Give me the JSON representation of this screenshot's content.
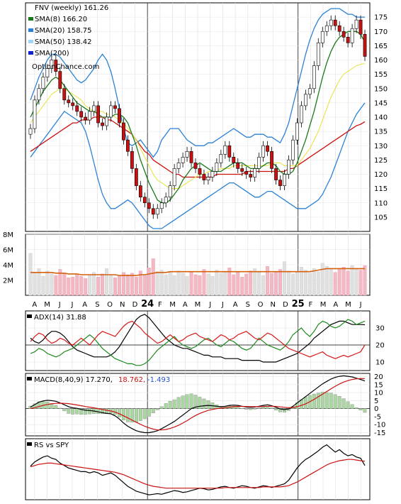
{
  "chart_data": [
    {
      "type": "candlestick",
      "panel": "price",
      "legend": [
        {
          "label": "FNV (weekly) 161.26",
          "color": "#000000",
          "marker": "none"
        },
        {
          "label": "SMA(8) 166.20",
          "color": "#1a7a1a",
          "marker": "bar"
        },
        {
          "label": "SMA(20) 158.75",
          "color": "#2a82d6",
          "marker": "bar"
        },
        {
          "label": "SMA(50) 138.42",
          "color": "#9fd4f6",
          "marker": "bar"
        },
        {
          "label": "SMA(200)",
          "color": "#1020d0",
          "marker": "bar"
        }
      ],
      "watermark": "OptionChance.com",
      "ylim": [
        100,
        180
      ],
      "yticks": [
        105,
        110,
        115,
        120,
        125,
        130,
        135,
        140,
        145,
        150,
        155,
        160,
        165,
        170,
        175
      ],
      "x_month_labels": [
        "A",
        "M",
        "J",
        "J",
        "A",
        "S",
        "O",
        "N",
        "D",
        "24",
        "F",
        "M",
        "A",
        "M",
        "J",
        "J",
        "A",
        "S",
        "O",
        "N",
        "D",
        "25",
        "F",
        "M",
        "A",
        "M",
        "J"
      ],
      "close": [
        136,
        146,
        150,
        154,
        157,
        160,
        156,
        150,
        146,
        145,
        144,
        142,
        140,
        139,
        142,
        144,
        138,
        137,
        140,
        144,
        143,
        138,
        132,
        128,
        122,
        116,
        112,
        110,
        108,
        106,
        108,
        110,
        112,
        116,
        122,
        124,
        126,
        128,
        124,
        122,
        120,
        118,
        119,
        121,
        124,
        127,
        130,
        126,
        124,
        122,
        121,
        120,
        119,
        122,
        126,
        130,
        128,
        122,
        118,
        116,
        120,
        125,
        132,
        138,
        144,
        148,
        150,
        158,
        166,
        170,
        172,
        174,
        172,
        170,
        168,
        166,
        171,
        174,
        169,
        161.26
      ],
      "sma8": [
        140,
        143,
        146,
        149,
        151,
        153,
        154,
        153,
        151,
        149,
        147,
        145,
        144,
        143,
        142,
        142,
        141,
        140,
        140,
        140,
        141,
        141,
        140,
        138,
        134,
        130,
        125,
        121,
        117,
        114,
        111,
        110,
        110,
        111,
        113,
        115,
        118,
        120,
        122,
        123,
        124,
        123,
        122,
        121,
        121,
        121,
        122,
        123,
        124,
        124,
        124,
        123,
        122,
        122,
        122,
        123,
        124,
        124,
        123,
        121,
        120,
        120,
        121,
        124,
        128,
        132,
        137,
        142,
        148,
        154,
        159,
        163,
        166,
        168,
        169,
        170,
        170,
        170,
        169,
        166.2
      ],
      "sma20": [
        138,
        140,
        142,
        144,
        146,
        148,
        149,
        150,
        150,
        149,
        148,
        147,
        146,
        144,
        143,
        142,
        142,
        142,
        141,
        141,
        140,
        139,
        138,
        136,
        134,
        132,
        129,
        126,
        123,
        120,
        118,
        117,
        116,
        115,
        115,
        115,
        116,
        117,
        118,
        119,
        120,
        120,
        121,
        121,
        121,
        122,
        122,
        122,
        123,
        123,
        123,
        123,
        123,
        123,
        123,
        123,
        123,
        124,
        124,
        124,
        123,
        123,
        123,
        123,
        125,
        127,
        129,
        132,
        135,
        139,
        143,
        147,
        150,
        153,
        155,
        156,
        157,
        158,
        158.5,
        158.75
      ],
      "sma50": [
        128,
        129,
        130,
        131,
        132,
        133,
        134,
        135,
        136,
        137,
        138,
        138,
        139,
        139,
        139,
        140,
        140,
        140,
        139,
        139,
        138,
        137,
        136,
        135,
        134,
        132,
        130,
        128,
        127,
        125,
        124,
        123,
        122,
        121,
        120,
        120,
        119,
        119,
        119,
        119,
        119,
        119,
        119,
        119,
        120,
        120,
        120,
        120,
        120,
        120,
        120,
        121,
        121,
        121,
        121,
        121,
        121,
        121,
        121,
        121,
        121,
        122,
        122,
        123,
        124,
        125,
        126,
        127,
        128,
        129,
        130,
        131,
        132,
        133,
        134,
        135,
        136,
        137,
        137.5,
        138.42
      ],
      "bb_upper": [
        146,
        150,
        154,
        157,
        160,
        162,
        162,
        161,
        159,
        157,
        155,
        153,
        152,
        153,
        155,
        157,
        160,
        162,
        160,
        156,
        150,
        143,
        136,
        131,
        130,
        131,
        132,
        130,
        128,
        126,
        128,
        132,
        134,
        136,
        136,
        136,
        134,
        132,
        131,
        130,
        130,
        130,
        131,
        131,
        132,
        133,
        134,
        135,
        136,
        135,
        134,
        133,
        133,
        134,
        134,
        134,
        133,
        133,
        132,
        131,
        134,
        138,
        144,
        150,
        156,
        162,
        167,
        171,
        174,
        176,
        177,
        178,
        178,
        178,
        177,
        176,
        176,
        175,
        175,
        175
      ],
      "bb_lower": [
        126,
        128,
        130,
        132,
        134,
        136,
        138,
        140,
        142,
        141,
        140,
        139,
        138,
        135,
        130,
        124,
        118,
        113,
        110,
        108,
        108,
        109,
        110,
        111,
        110,
        108,
        106,
        104,
        102,
        101,
        101,
        101,
        102,
        103,
        104,
        105,
        106,
        107,
        108,
        109,
        110,
        111,
        112,
        113,
        114,
        115,
        116,
        117,
        117,
        116,
        115,
        114,
        113,
        112,
        112,
        113,
        114,
        114,
        113,
        112,
        111,
        110,
        109,
        108,
        108,
        108,
        109,
        110,
        111,
        113,
        116,
        119,
        123,
        127,
        131,
        135,
        138,
        141,
        143,
        145
      ]
    },
    {
      "type": "bar",
      "panel": "volume",
      "yticks": [
        "8M",
        "6M",
        "4M",
        "2M"
      ],
      "ylim": [
        0,
        8
      ],
      "values": [
        5.5,
        3.0,
        3.5,
        2.5,
        3.2,
        2.8,
        2.6,
        3.4,
        2.9,
        2.3,
        2.4,
        2.7,
        2.5,
        2.2,
        2.6,
        3.0,
        2.4,
        2.8,
        3.5,
        2.6,
        2.3,
        2.5,
        3.0,
        2.7,
        2.9,
        2.4,
        3.2,
        2.6,
        3.6,
        4.8,
        3.1,
        3.3,
        2.7,
        3.0,
        2.6,
        3.2,
        2.9,
        2.5,
        3.0,
        2.7,
        2.6,
        3.4,
        2.8,
        2.5,
        3.3,
        2.9,
        3.1,
        3.6,
        2.7,
        3.0,
        2.4,
        2.8,
        3.2,
        3.5,
        3.0,
        2.6,
        3.8,
        2.9,
        3.1,
        3.4,
        4.4,
        3.2,
        2.8,
        3.0,
        3.7,
        3.3,
        2.9,
        3.5,
        3.1,
        4.2,
        3.8,
        3.5,
        3.0,
        3.4,
        3.7,
        3.2,
        3.9,
        3.5,
        3.3,
        3.9
      ],
      "average": [
        3.0,
        3.0,
        3.0,
        3.0,
        3.0,
        3.0,
        2.9,
        2.9,
        2.9,
        2.8,
        2.8,
        2.8,
        2.7,
        2.7,
        2.7,
        2.7,
        2.7,
        2.7,
        2.7,
        2.7,
        2.7,
        2.6,
        2.6,
        2.6,
        2.6,
        2.6,
        2.7,
        2.7,
        2.8,
        2.9,
        3.0,
        3.0,
        3.0,
        3.1,
        3.1,
        3.1,
        3.1,
        3.1,
        3.1,
        3.1,
        3.1,
        3.1,
        3.1,
        3.1,
        3.1,
        3.1,
        3.1,
        3.1,
        3.1,
        3.1,
        3.1,
        3.1,
        3.1,
        3.1,
        3.1,
        3.1,
        3.1,
        3.1,
        3.1,
        3.1,
        3.1,
        3.1,
        3.1,
        3.1,
        3.1,
        3.1,
        3.1,
        3.2,
        3.3,
        3.4,
        3.5,
        3.5,
        3.5,
        3.5,
        3.5,
        3.5,
        3.5,
        3.5,
        3.5,
        3.5
      ]
    },
    {
      "type": "line",
      "panel": "adx",
      "label": "ADX(14) 31.88",
      "ylim": [
        5,
        40
      ],
      "yticks": [
        10,
        20,
        30
      ],
      "series": [
        {
          "color": "#000000",
          "values": [
            24,
            22,
            21,
            23,
            26,
            28,
            28,
            27,
            25,
            22,
            19,
            17,
            16,
            15,
            14,
            13,
            13,
            13,
            13,
            14,
            16,
            19,
            23,
            27,
            31,
            35,
            37,
            38,
            36,
            33,
            30,
            27,
            24,
            22,
            20,
            19,
            18,
            18,
            17,
            16,
            15,
            14,
            14,
            13,
            13,
            13,
            12,
            12,
            12,
            12,
            11,
            11,
            11,
            11,
            11,
            10,
            10,
            10,
            10,
            11,
            12,
            13,
            14,
            15,
            17,
            19,
            21,
            24,
            26,
            28,
            30,
            32,
            33,
            34,
            34,
            33,
            32,
            32,
            32,
            31.88
          ]
        },
        {
          "color": "#1e8a1e",
          "values": [
            15,
            16,
            18,
            17,
            15,
            14,
            13,
            14,
            16,
            17,
            18,
            20,
            22,
            24,
            26,
            24,
            21,
            18,
            16,
            14,
            12,
            11,
            10,
            9,
            9,
            8,
            8,
            9,
            11,
            14,
            17,
            19,
            21,
            23,
            25,
            22,
            20,
            19,
            18,
            19,
            21,
            23,
            24,
            22,
            20,
            19,
            21,
            23,
            22,
            20,
            18,
            17,
            18,
            21,
            24,
            22,
            20,
            19,
            18,
            17,
            19,
            22,
            26,
            28,
            30,
            27,
            25,
            28,
            32,
            34,
            33,
            31,
            30,
            31,
            33,
            35,
            34,
            32,
            33,
            34
          ]
        },
        {
          "color": "#d81818",
          "values": [
            22,
            25,
            27,
            26,
            23,
            21,
            22,
            24,
            23,
            21,
            20,
            22,
            24,
            22,
            20,
            23,
            26,
            28,
            27,
            26,
            25,
            28,
            31,
            33,
            34,
            32,
            30,
            27,
            25,
            23,
            21,
            22,
            24,
            26,
            24,
            22,
            23,
            25,
            26,
            27,
            25,
            24,
            23,
            22,
            24,
            26,
            25,
            23,
            24,
            26,
            27,
            28,
            26,
            24,
            23,
            25,
            27,
            26,
            24,
            22,
            20,
            18,
            17,
            16,
            15,
            14,
            13,
            14,
            15,
            16,
            14,
            13,
            12,
            13,
            14,
            13,
            14,
            15,
            16,
            20
          ]
        }
      ]
    },
    {
      "type": "line_histogram",
      "panel": "macd",
      "label": "MACD(8,40,9) 17.270,",
      "signal_label": "18.762,",
      "hist_label": "-1.493",
      "ylim": [
        -17,
        22
      ],
      "yticks": [
        20,
        15,
        10,
        5,
        0,
        -5,
        -10,
        -15
      ],
      "macd": [
        1.0,
        2.5,
        4.0,
        4.8,
        5.2,
        5.0,
        4.6,
        3.6,
        2.4,
        1.2,
        0.5,
        0.2,
        -0.5,
        -1.0,
        -1.2,
        -1.5,
        -2.0,
        -2.5,
        -3.0,
        -3.2,
        -4.5,
        -6.5,
        -9.0,
        -11.0,
        -12.5,
        -13.8,
        -14.5,
        -15.0,
        -15.0,
        -14.5,
        -13.8,
        -12.5,
        -11.0,
        -9.5,
        -8.0,
        -6.0,
        -4.0,
        -2.0,
        0.0,
        1.0,
        1.5,
        1.8,
        2.0,
        1.8,
        1.5,
        1.2,
        1.5,
        2.0,
        2.2,
        2.0,
        1.5,
        1.0,
        0.8,
        1.0,
        1.5,
        2.0,
        2.4,
        1.8,
        0.8,
        -0.2,
        -0.6,
        -0.2,
        1.5,
        3.5,
        5.5,
        7.5,
        9.5,
        11.5,
        13.5,
        15.5,
        17.0,
        18.5,
        19.5,
        20.2,
        20.5,
        20.2,
        19.8,
        19.0,
        18.2,
        17.27
      ],
      "signal": [
        0.0,
        0.6,
        1.3,
        2.0,
        2.6,
        3.0,
        3.3,
        3.4,
        3.3,
        3.1,
        2.7,
        2.3,
        1.8,
        1.3,
        0.9,
        0.5,
        0.0,
        -0.5,
        -1.0,
        -1.5,
        -2.2,
        -3.2,
        -4.5,
        -5.8,
        -7.2,
        -8.5,
        -9.8,
        -11.0,
        -12.0,
        -12.8,
        -13.3,
        -13.3,
        -13.0,
        -12.4,
        -11.5,
        -10.4,
        -9.0,
        -7.5,
        -5.8,
        -4.3,
        -3.0,
        -2.0,
        -1.1,
        -0.5,
        0.0,
        0.3,
        0.6,
        0.9,
        1.2,
        1.4,
        1.4,
        1.3,
        1.2,
        1.2,
        1.2,
        1.3,
        1.5,
        1.5,
        1.4,
        1.1,
        0.8,
        0.6,
        0.7,
        1.2,
        2.0,
        3.0,
        4.3,
        5.8,
        7.4,
        9.0,
        10.7,
        12.4,
        14.0,
        15.4,
        16.6,
        17.5,
        18.2,
        18.6,
        18.8,
        18.762
      ]
    },
    {
      "type": "line",
      "panel": "rs",
      "label": "RS vs SPY",
      "ylim": [
        0,
        100
      ],
      "series": [
        {
          "color": "#000000",
          "values": [
            55,
            62,
            66,
            70,
            72,
            68,
            66,
            60,
            56,
            52,
            50,
            48,
            46,
            46,
            44,
            46,
            44,
            40,
            42,
            44,
            40,
            34,
            28,
            22,
            18,
            14,
            12,
            10,
            8,
            9,
            10,
            9,
            11,
            13,
            15,
            14,
            12,
            13,
            15,
            17,
            19,
            18,
            16,
            17,
            19,
            21,
            22,
            20,
            19,
            21,
            23,
            22,
            20,
            19,
            21,
            23,
            22,
            20,
            22,
            24,
            26,
            32,
            42,
            52,
            60,
            66,
            70,
            75,
            80,
            86,
            90,
            84,
            78,
            82,
            76,
            72,
            74,
            70,
            68,
            56
          ]
        },
        {
          "color": "#cc1111",
          "values": [
            54,
            56,
            58,
            59,
            60,
            60,
            59,
            58,
            57,
            56,
            55,
            54,
            53,
            52,
            51,
            50,
            49,
            48,
            47,
            46,
            45,
            43,
            41,
            38,
            35,
            32,
            29,
            26,
            24,
            22,
            21,
            20,
            19,
            19,
            19,
            19,
            19,
            19,
            19,
            19,
            19,
            19,
            19,
            19,
            19,
            19,
            20,
            20,
            20,
            20,
            20,
            20,
            20,
            20,
            20,
            21,
            21,
            21,
            21,
            21,
            22,
            23,
            26,
            29,
            33,
            37,
            41,
            45,
            49,
            53,
            57,
            60,
            62,
            64,
            65,
            66,
            66,
            65,
            64,
            63
          ]
        }
      ]
    }
  ]
}
